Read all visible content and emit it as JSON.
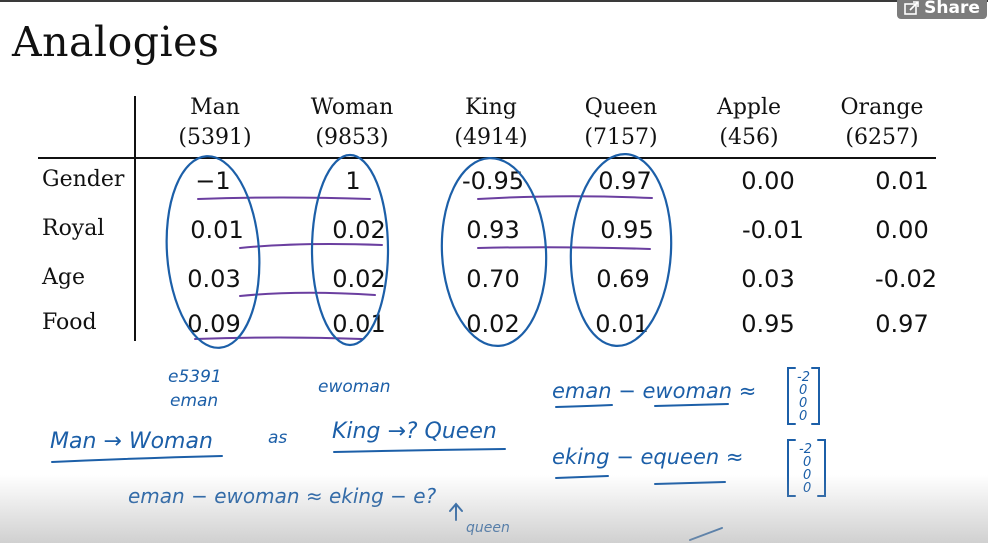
{
  "slide": {
    "title": "Analogies",
    "share_label": "Share"
  },
  "table": {
    "columns": [
      {
        "word": "Man",
        "index": "(5391)"
      },
      {
        "word": "Woman",
        "index": "(9853)"
      },
      {
        "word": "King",
        "index": "(4914)"
      },
      {
        "word": "Queen",
        "index": "(7157)"
      },
      {
        "word": "Apple",
        "index": "(456)"
      },
      {
        "word": "Orange",
        "index": "(6257)"
      }
    ],
    "rows": [
      {
        "label": "Gender",
        "values": [
          "−1",
          "1",
          "-0.95",
          "0.97",
          "0.00",
          "0.01"
        ]
      },
      {
        "label": "Royal",
        "values": [
          "0.01",
          "0.02",
          "0.93",
          "0.95",
          "-0.01",
          "0.00"
        ]
      },
      {
        "label": "Age",
        "values": [
          "0.03",
          "0.02",
          "0.70",
          "0.69",
          "0.03",
          "-0.02"
        ]
      },
      {
        "label": "Food",
        "values": [
          "0.09",
          "0.01",
          "0.02",
          "0.01",
          "0.95",
          "0.97"
        ]
      }
    ]
  },
  "notes": {
    "e5391": "e5391",
    "eman": "eman",
    "ewoman": "ewoman",
    "man_woman": "Man → Woman",
    "as": "as",
    "king_queen": "King →? Queen",
    "eman_minus_ewoman_approx": "eman − ewoman ≈",
    "eking_minus_equeen_approx": "eking − equeen ≈",
    "analogy_eq": "eman − ewoman ≈ eking − e?",
    "queen_arrow": "queen",
    "vec1": [
      "-2",
      "0",
      "0",
      "0"
    ],
    "vec2": [
      "-2",
      "0",
      "0",
      "0"
    ]
  }
}
